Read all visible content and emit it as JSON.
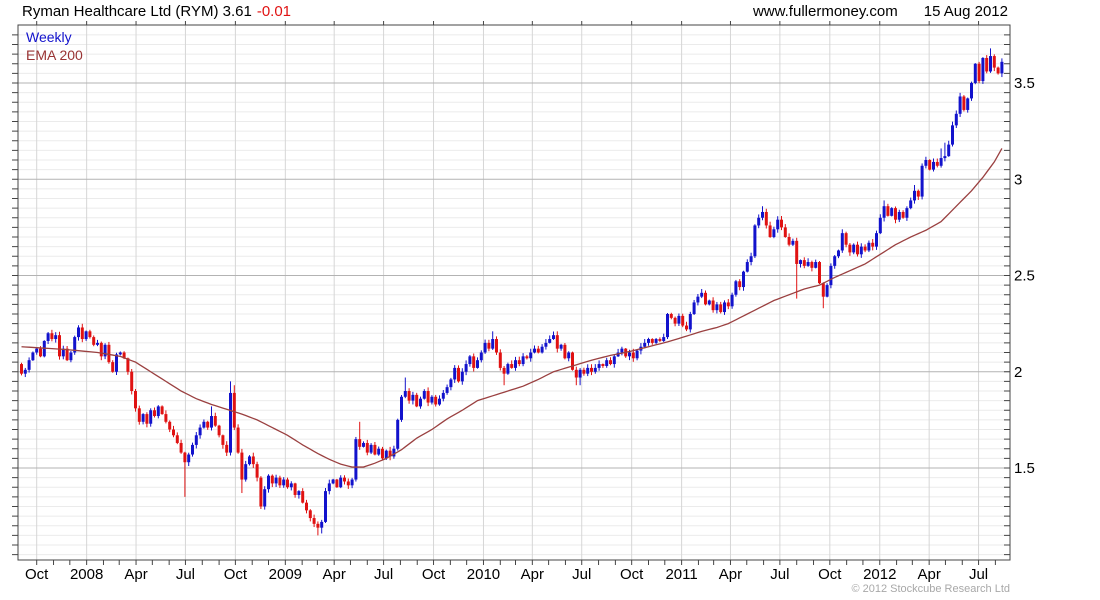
{
  "header": {
    "title_main": "Ryman Healthcare Ltd (RYM) 3.61",
    "title_change": "-0.01",
    "site": "www.fullermoney.com",
    "date": "15 Aug 2012"
  },
  "legend": {
    "timeframe": "Weekly",
    "overlay": "EMA 200"
  },
  "footer": {
    "copyright": "© 2012 Stockcube Research Ltd"
  },
  "colors": {
    "up": "#1212cc",
    "down": "#e01212",
    "ema": "#9a4040",
    "ema_text": "#993333",
    "change": "#e01212",
    "grid_minor": "#ebebeb",
    "grid_major": "#b3b3b3",
    "grid_vert": "#d6d6d6",
    "axis": "#444444",
    "copyright": "#a8a8a8"
  },
  "chart_data": {
    "type": "candlestick+line",
    "instrument": "Ryman Healthcare Ltd (RYM)",
    "timeframe": "Weekly",
    "overlay": "EMA 200",
    "last_price": 3.61,
    "change": -0.01,
    "as_of": "15 Aug 2012",
    "start_week": "2007-09-03",
    "week_count": 259,
    "first_open": 2.04,
    "ylim": [
      1.02,
      3.8
    ],
    "y_minor_step": 0.05,
    "y_ticks": [
      {
        "price": 3.5,
        "label": "3.5"
      },
      {
        "price": 3.0,
        "label": "3"
      },
      {
        "price": 2.5,
        "label": "2.5"
      },
      {
        "price": 2.0,
        "label": "2"
      },
      {
        "price": 1.5,
        "label": "1.5"
      }
    ],
    "x_ticks": [
      {
        "ym": "2007-10",
        "label": "Oct"
      },
      {
        "ym": "2008-01",
        "label": "2008"
      },
      {
        "ym": "2008-04",
        "label": "Apr"
      },
      {
        "ym": "2008-07",
        "label": "Jul"
      },
      {
        "ym": "2008-10",
        "label": "Oct"
      },
      {
        "ym": "2009-01",
        "label": "2009"
      },
      {
        "ym": "2009-04",
        "label": "Apr"
      },
      {
        "ym": "2009-07",
        "label": "Jul"
      },
      {
        "ym": "2009-10",
        "label": "Oct"
      },
      {
        "ym": "2010-01",
        "label": "2010"
      },
      {
        "ym": "2010-04",
        "label": "Apr"
      },
      {
        "ym": "2010-07",
        "label": "Jul"
      },
      {
        "ym": "2010-10",
        "label": "Oct"
      },
      {
        "ym": "2011-01",
        "label": "2011"
      },
      {
        "ym": "2011-04",
        "label": "Apr"
      },
      {
        "ym": "2011-07",
        "label": "Jul"
      },
      {
        "ym": "2011-10",
        "label": "Oct"
      },
      {
        "ym": "2012-01",
        "label": "2012"
      },
      {
        "ym": "2012-04",
        "label": "Apr"
      },
      {
        "ym": "2012-07",
        "label": "Jul"
      }
    ],
    "closes": [
      1.99,
      2.01,
      2.06,
      2.1,
      2.12,
      2.08,
      2.16,
      2.2,
      2.17,
      2.19,
      2.08,
      2.12,
      2.06,
      2.1,
      2.18,
      2.23,
      2.17,
      2.21,
      2.18,
      2.14,
      2.15,
      2.08,
      2.14,
      2.05,
      2.0,
      2.09,
      2.1,
      2.07,
      2.0,
      1.9,
      1.81,
      1.74,
      1.78,
      1.73,
      1.8,
      1.77,
      1.82,
      1.78,
      1.74,
      1.7,
      1.67,
      1.63,
      1.58,
      1.53,
      1.57,
      1.62,
      1.67,
      1.71,
      1.74,
      1.71,
      1.77,
      1.72,
      1.67,
      1.62,
      1.58,
      1.89,
      1.71,
      1.58,
      1.44,
      1.52,
      1.56,
      1.52,
      1.45,
      1.3,
      1.39,
      1.46,
      1.42,
      1.45,
      1.41,
      1.44,
      1.4,
      1.42,
      1.36,
      1.38,
      1.32,
      1.28,
      1.24,
      1.21,
      1.19,
      1.22,
      1.38,
      1.42,
      1.44,
      1.4,
      1.45,
      1.43,
      1.41,
      1.44,
      1.65,
      1.61,
      1.63,
      1.58,
      1.62,
      1.57,
      1.6,
      1.55,
      1.59,
      1.56,
      1.6,
      1.75,
      1.87,
      1.9,
      1.85,
      1.88,
      1.82,
      1.86,
      1.9,
      1.84,
      1.87,
      1.83,
      1.86,
      1.89,
      1.92,
      1.96,
      2.02,
      1.95,
      2.0,
      2.04,
      2.08,
      2.02,
      2.06,
      2.1,
      2.15,
      2.12,
      2.17,
      2.1,
      2.02,
      1.99,
      2.04,
      2.02,
      2.06,
      2.04,
      2.08,
      2.07,
      2.1,
      2.12,
      2.1,
      2.13,
      2.15,
      2.17,
      2.19,
      2.12,
      2.14,
      2.07,
      2.1,
      2.01,
      1.97,
      2.01,
      1.99,
      2.02,
      2.0,
      2.02,
      2.04,
      2.03,
      2.06,
      2.04,
      2.08,
      2.1,
      2.12,
      2.08,
      2.1,
      2.07,
      2.11,
      2.13,
      2.15,
      2.17,
      2.15,
      2.17,
      2.16,
      2.18,
      2.3,
      2.28,
      2.25,
      2.29,
      2.24,
      2.22,
      2.3,
      2.36,
      2.39,
      2.41,
      2.35,
      2.37,
      2.32,
      2.35,
      2.31,
      2.36,
      2.34,
      2.4,
      2.47,
      2.44,
      2.52,
      2.57,
      2.6,
      2.76,
      2.8,
      2.83,
      2.76,
      2.7,
      2.74,
      2.79,
      2.75,
      2.7,
      2.66,
      2.68,
      2.56,
      2.58,
      2.55,
      2.57,
      2.54,
      2.57,
      2.46,
      2.39,
      2.45,
      2.55,
      2.6,
      2.63,
      2.72,
      2.66,
      2.62,
      2.66,
      2.61,
      2.65,
      2.63,
      2.67,
      2.65,
      2.72,
      2.8,
      2.86,
      2.81,
      2.85,
      2.79,
      2.83,
      2.8,
      2.85,
      2.89,
      2.94,
      2.91,
      3.07,
      3.1,
      3.05,
      3.09,
      3.07,
      3.11,
      3.12,
      3.18,
      3.28,
      3.34,
      3.43,
      3.36,
      3.42,
      3.5,
      3.6,
      3.51,
      3.63,
      3.56,
      3.64,
      3.58,
      3.55,
      3.61
    ],
    "wick_overrides": {
      "43": {
        "l": 1.35
      },
      "50": {
        "h": 1.82
      },
      "55": {
        "h": 1.95
      },
      "56": {
        "h": 1.93
      },
      "58": {
        "l": 1.37
      },
      "78": {
        "l": 1.15
      },
      "79": {
        "l": 1.16
      },
      "89": {
        "h": 1.74
      },
      "101": {
        "h": 1.97
      },
      "124": {
        "h": 2.21
      },
      "127": {
        "l": 1.93
      },
      "141": {
        "h": 2.21
      },
      "146": {
        "l": 1.93
      },
      "147": {
        "l": 1.93
      },
      "179": {
        "h": 2.43
      },
      "195": {
        "h": 2.86
      },
      "204": {
        "l": 2.38
      },
      "211": {
        "l": 2.33
      },
      "216": {
        "h": 2.74
      },
      "227": {
        "h": 2.89
      },
      "235": {
        "h": 2.97
      },
      "242": {
        "h": 3.16
      },
      "243": {
        "h": 3.19
      },
      "255": {
        "h": 3.68
      }
    },
    "ema_anchors": [
      [
        0,
        2.13
      ],
      [
        12,
        2.115
      ],
      [
        20,
        2.1
      ],
      [
        26,
        2.08
      ],
      [
        30,
        2.05
      ],
      [
        34,
        2.0
      ],
      [
        38,
        1.95
      ],
      [
        42,
        1.9
      ],
      [
        46,
        1.86
      ],
      [
        50,
        1.83
      ],
      [
        54,
        1.805
      ],
      [
        58,
        1.78
      ],
      [
        62,
        1.75
      ],
      [
        66,
        1.71
      ],
      [
        70,
        1.67
      ],
      [
        74,
        1.62
      ],
      [
        78,
        1.575
      ],
      [
        81,
        1.545
      ],
      [
        84,
        1.52
      ],
      [
        87,
        1.505
      ],
      [
        90,
        1.505
      ],
      [
        93,
        1.525
      ],
      [
        96,
        1.55
      ],
      [
        100,
        1.595
      ],
      [
        104,
        1.655
      ],
      [
        108,
        1.7
      ],
      [
        112,
        1.755
      ],
      [
        116,
        1.8
      ],
      [
        120,
        1.85
      ],
      [
        124,
        1.875
      ],
      [
        128,
        1.9
      ],
      [
        132,
        1.925
      ],
      [
        136,
        1.96
      ],
      [
        140,
        2.0
      ],
      [
        145,
        2.03
      ],
      [
        150,
        2.06
      ],
      [
        155,
        2.085
      ],
      [
        160,
        2.105
      ],
      [
        165,
        2.13
      ],
      [
        170,
        2.155
      ],
      [
        175,
        2.185
      ],
      [
        179,
        2.21
      ],
      [
        183,
        2.23
      ],
      [
        186,
        2.25
      ],
      [
        190,
        2.29
      ],
      [
        194,
        2.33
      ],
      [
        198,
        2.37
      ],
      [
        202,
        2.4
      ],
      [
        206,
        2.43
      ],
      [
        210,
        2.45
      ],
      [
        214,
        2.49
      ],
      [
        218,
        2.525
      ],
      [
        222,
        2.56
      ],
      [
        226,
        2.61
      ],
      [
        230,
        2.66
      ],
      [
        234,
        2.7
      ],
      [
        238,
        2.735
      ],
      [
        242,
        2.78
      ],
      [
        246,
        2.86
      ],
      [
        250,
        2.94
      ],
      [
        253,
        3.01
      ],
      [
        256,
        3.09
      ],
      [
        258,
        3.16
      ]
    ]
  }
}
